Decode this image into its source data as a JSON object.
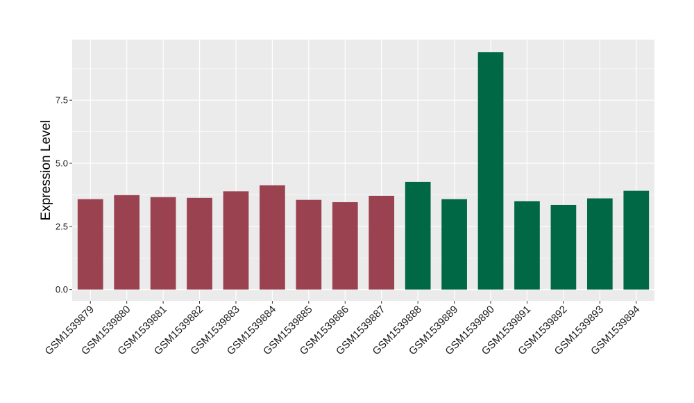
{
  "chart_data": {
    "type": "bar",
    "title": "",
    "xlabel": "",
    "ylabel": "Expression Level",
    "ylim": [
      -0.45,
      9.9
    ],
    "yticks": [
      0.0,
      2.5,
      5.0,
      7.5
    ],
    "ytick_labels": [
      "0.0",
      "2.5",
      "5.0",
      "7.5"
    ],
    "grid": true,
    "legend": "none",
    "categories": [
      "GSM1539879",
      "GSM1539880",
      "GSM1539881",
      "GSM1539882",
      "GSM1539883",
      "GSM1539884",
      "GSM1539885",
      "GSM1539886",
      "GSM1539887",
      "GSM1539888",
      "GSM1539889",
      "GSM1539890",
      "GSM1539891",
      "GSM1539892",
      "GSM1539893",
      "GSM1539894"
    ],
    "values": [
      3.58,
      3.74,
      3.66,
      3.63,
      3.89,
      4.13,
      3.55,
      3.46,
      3.71,
      4.26,
      3.58,
      9.4,
      3.5,
      3.35,
      3.61,
      3.91
    ],
    "groups": [
      0,
      0,
      0,
      0,
      0,
      0,
      0,
      0,
      0,
      1,
      1,
      1,
      1,
      1,
      1,
      1
    ],
    "group_colors": [
      "#9b4250",
      "#006845"
    ],
    "panel_color": "#ebebeb",
    "grid_color": "#ffffff"
  }
}
